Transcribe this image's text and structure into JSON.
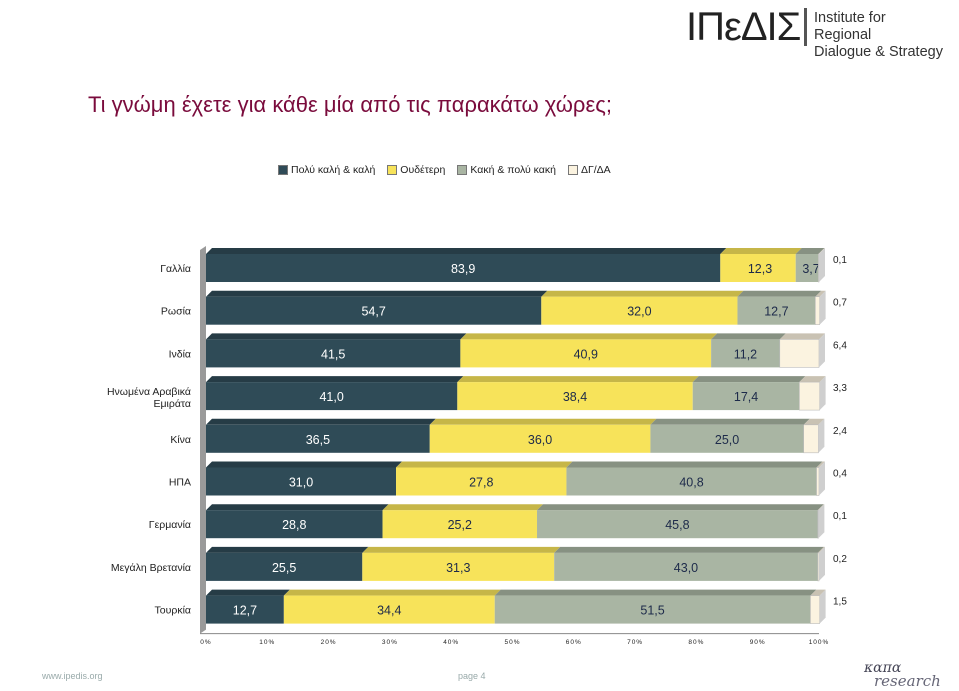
{
  "header": {
    "logo_mark": "ΙΠεΔΙΣ",
    "logo_line1": "Institute for Regional",
    "logo_line2": "Dialogue & Strategy"
  },
  "footer": {
    "url": "www.ipedis.org",
    "page": "page 4",
    "brand_line1": "καπα",
    "brand_line2": "research"
  },
  "colors": {
    "good": "#2f4b57",
    "neutral": "#f7e35a",
    "bad": "#a9b5a3",
    "dk": "#fbf3e0"
  },
  "chart_data": {
    "type": "bar",
    "orientation": "horizontal",
    "stacked": true,
    "percent_stacked": true,
    "title": "Τι γνώμη έχετε για κάθε μία από τις παρακάτω χώρες;",
    "categories": [
      "Γαλλία",
      "Ρωσία",
      "Ινδία",
      "Ηνωμένα Αραβικά Εμιράτα",
      "Κίνα",
      "ΗΠΑ",
      "Γερμανία",
      "Μεγάλη Βρετανία",
      "Τουρκία"
    ],
    "series": [
      {
        "name": "Πολύ καλή & καλή",
        "values": [
          83.9,
          54.7,
          41.5,
          41.0,
          36.5,
          31.0,
          28.8,
          25.5,
          12.7
        ],
        "labels": [
          "83,9",
          "54,7",
          "41,5",
          "41,0",
          "36,5",
          "31,0",
          "28,8",
          "25,5",
          "12,7"
        ]
      },
      {
        "name": "Ουδέτερη",
        "values": [
          12.3,
          32.0,
          40.9,
          38.4,
          36.0,
          27.8,
          25.2,
          31.3,
          34.4
        ],
        "labels": [
          "12,3",
          "32,0",
          "40,9",
          "38,4",
          "36,0",
          "27,8",
          "25,2",
          "31,3",
          "34,4"
        ]
      },
      {
        "name": "Κακή & πολύ κακή",
        "values": [
          3.7,
          12.7,
          11.2,
          17.4,
          25.0,
          40.8,
          45.8,
          43.0,
          51.5
        ],
        "labels": [
          "3,7",
          "12,7",
          "11,2",
          "17,4",
          "25,0",
          "40,8",
          "45,8",
          "43,0",
          "51,5"
        ]
      },
      {
        "name": "ΔΓ/ΔΑ",
        "values": [
          0.1,
          0.7,
          6.4,
          3.3,
          2.4,
          0.4,
          0.1,
          0.2,
          1.5
        ],
        "labels": [
          "0,1",
          "0,7",
          "6,4",
          "3,3",
          "2,4",
          "0,4",
          "0,1",
          "0,2",
          "1,5"
        ]
      }
    ],
    "xlim": [
      0,
      100
    ],
    "xticks": [
      "0%",
      "10%",
      "20%",
      "30%",
      "40%",
      "50%",
      "60%",
      "70%",
      "80%",
      "90%",
      "100%"
    ],
    "legend": "top"
  }
}
